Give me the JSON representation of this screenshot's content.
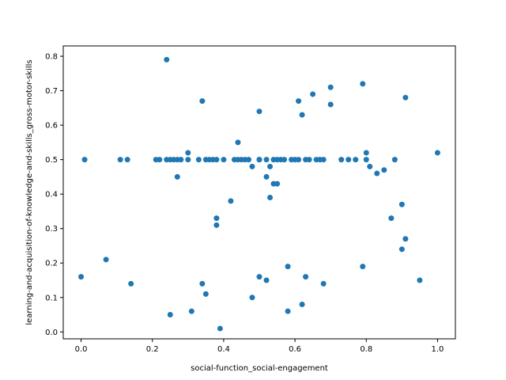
{
  "chart_data": {
    "type": "scatter",
    "title": "",
    "xlabel": "social-function_social-engagement",
    "ylabel": "learning-and-acquisition-of-knowledge-and-skills_gross-motor-skills",
    "xlim": [
      -0.05,
      1.05
    ],
    "ylim": [
      -0.02,
      0.83
    ],
    "xticks": [
      0.0,
      0.2,
      0.4,
      0.6,
      0.8,
      1.0
    ],
    "xtick_labels": [
      "0.0",
      "0.2",
      "0.4",
      "0.6",
      "0.8",
      "1.0"
    ],
    "yticks": [
      0.0,
      0.1,
      0.2,
      0.3,
      0.4,
      0.5,
      0.6,
      0.7,
      0.8
    ],
    "ytick_labels": [
      "0.0",
      "0.1",
      "0.2",
      "0.3",
      "0.4",
      "0.5",
      "0.6",
      "0.7",
      "0.8"
    ],
    "grid": false,
    "marker_color": "#1f77b4",
    "x": [
      0.0,
      0.01,
      0.07,
      0.11,
      0.13,
      0.14,
      0.21,
      0.22,
      0.24,
      0.24,
      0.25,
      0.25,
      0.26,
      0.27,
      0.27,
      0.28,
      0.3,
      0.3,
      0.31,
      0.33,
      0.34,
      0.34,
      0.35,
      0.35,
      0.36,
      0.37,
      0.38,
      0.38,
      0.38,
      0.39,
      0.4,
      0.42,
      0.43,
      0.44,
      0.44,
      0.45,
      0.46,
      0.47,
      0.48,
      0.48,
      0.5,
      0.5,
      0.5,
      0.5,
      0.52,
      0.52,
      0.52,
      0.53,
      0.53,
      0.54,
      0.54,
      0.55,
      0.55,
      0.56,
      0.57,
      0.58,
      0.58,
      0.59,
      0.6,
      0.61,
      0.61,
      0.62,
      0.62,
      0.63,
      0.63,
      0.64,
      0.65,
      0.66,
      0.67,
      0.68,
      0.68,
      0.7,
      0.7,
      0.73,
      0.75,
      0.77,
      0.79,
      0.79,
      0.8,
      0.8,
      0.81,
      0.83,
      0.85,
      0.87,
      0.88,
      0.9,
      0.9,
      0.91,
      0.91,
      0.95,
      1.0
    ],
    "y": [
      0.16,
      0.5,
      0.21,
      0.5,
      0.5,
      0.14,
      0.5,
      0.5,
      0.79,
      0.5,
      0.5,
      0.05,
      0.5,
      0.45,
      0.5,
      0.5,
      0.52,
      0.5,
      0.06,
      0.5,
      0.67,
      0.14,
      0.5,
      0.11,
      0.5,
      0.5,
      0.33,
      0.31,
      0.5,
      0.01,
      0.5,
      0.38,
      0.5,
      0.55,
      0.5,
      0.5,
      0.5,
      0.5,
      0.48,
      0.1,
      0.64,
      0.5,
      0.5,
      0.16,
      0.5,
      0.45,
      0.15,
      0.48,
      0.39,
      0.5,
      0.43,
      0.43,
      0.5,
      0.5,
      0.5,
      0.19,
      0.06,
      0.5,
      0.5,
      0.67,
      0.5,
      0.63,
      0.08,
      0.5,
      0.16,
      0.5,
      0.69,
      0.5,
      0.5,
      0.5,
      0.14,
      0.71,
      0.66,
      0.5,
      0.5,
      0.5,
      0.72,
      0.19,
      0.52,
      0.5,
      0.48,
      0.46,
      0.47,
      0.33,
      0.5,
      0.37,
      0.24,
      0.68,
      0.27,
      0.15,
      0.52
    ]
  }
}
